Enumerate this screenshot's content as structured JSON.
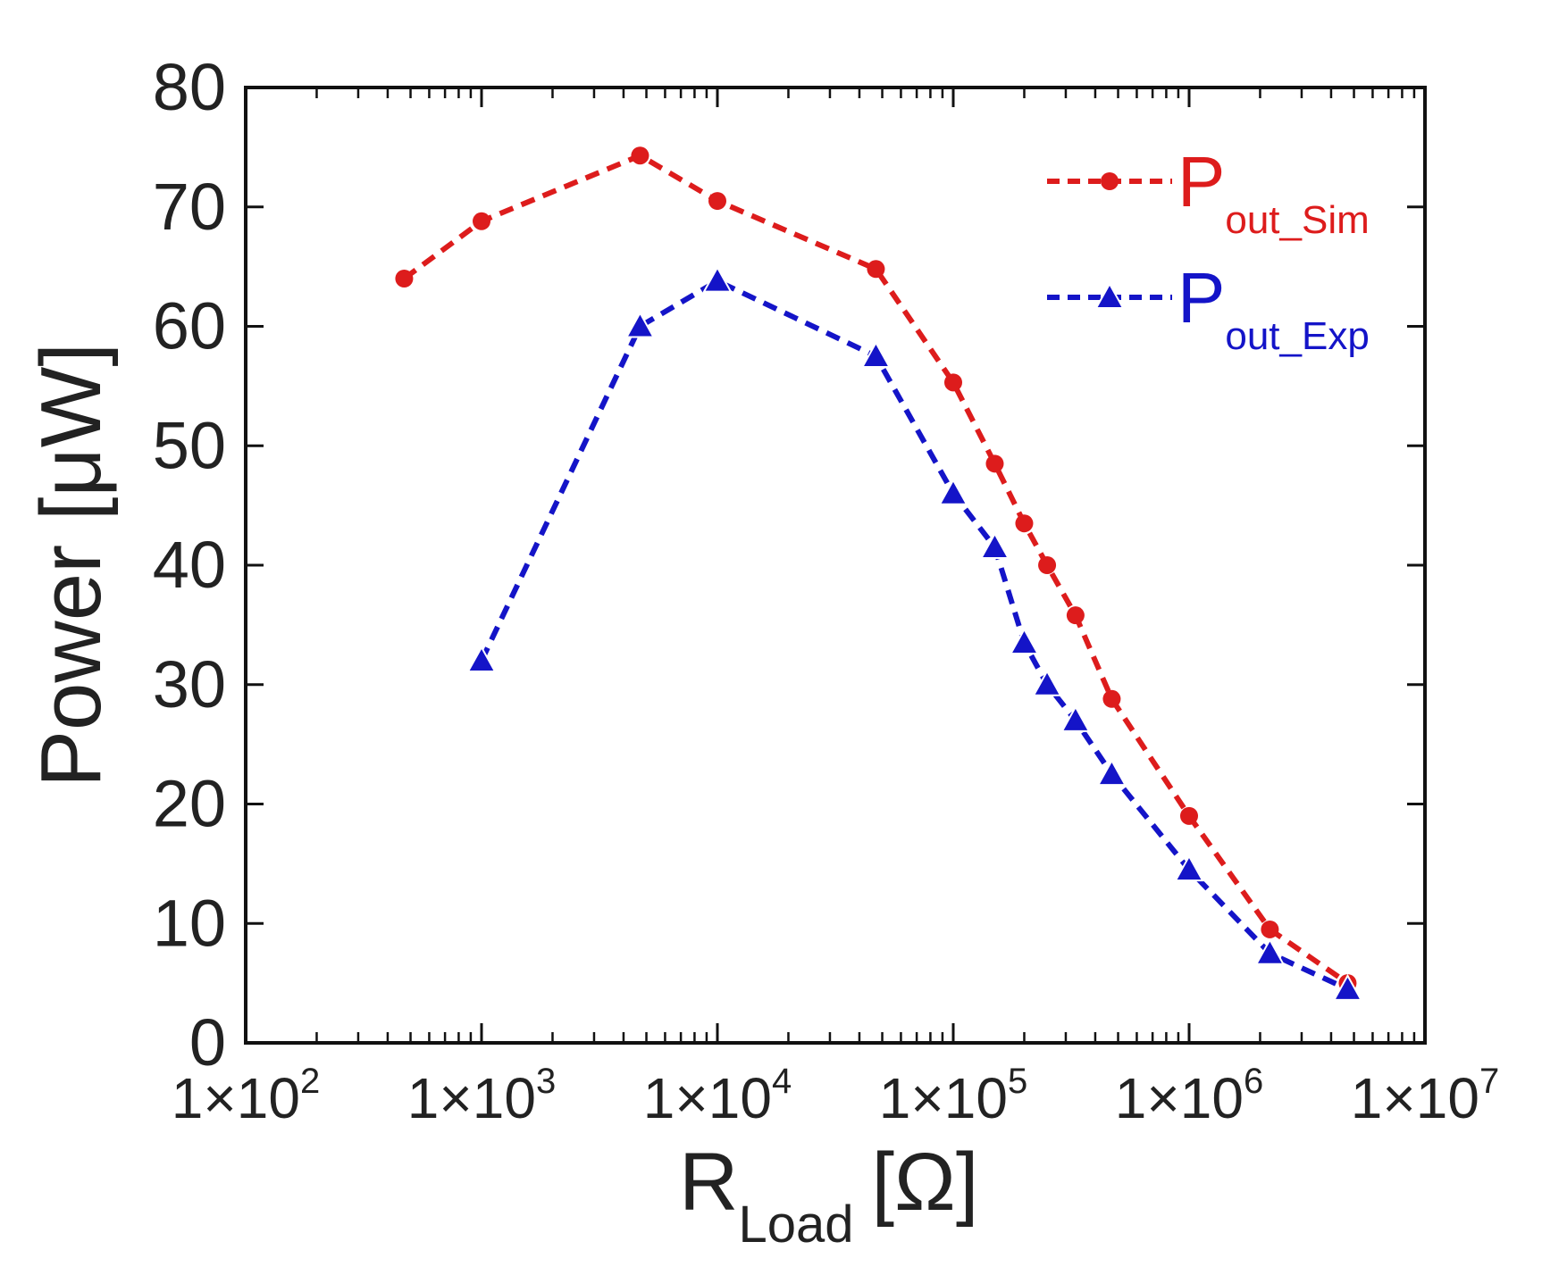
{
  "chart_data": {
    "type": "line",
    "title": "",
    "xlabel": "R",
    "xlabel_sub": "Load",
    "xlabel_unit": "[Ω]",
    "ylabel": "Power [μW]",
    "xscale": "log",
    "xlim": [
      100,
      10000000
    ],
    "ylim": [
      0,
      80
    ],
    "grid": false,
    "legend_position": "top-right",
    "x_ticks": [
      {
        "value": 100,
        "label": "1×10",
        "exp": "2"
      },
      {
        "value": 1000,
        "label": "1×10",
        "exp": "3"
      },
      {
        "value": 10000,
        "label": "1×10",
        "exp": "4"
      },
      {
        "value": 100000,
        "label": "1×10",
        "exp": "5"
      },
      {
        "value": 1000000,
        "label": "1×10",
        "exp": "6"
      },
      {
        "value": 10000000,
        "label": "1×10",
        "exp": "7"
      }
    ],
    "y_ticks": [
      0,
      10,
      20,
      30,
      40,
      50,
      60,
      70,
      80
    ],
    "series": [
      {
        "name": "P",
        "name_sub": "out_Sim",
        "color": "#dd1c1c",
        "marker": "circle",
        "points": [
          [
            470,
            64
          ],
          [
            1000,
            68.8
          ],
          [
            4700,
            74.3
          ],
          [
            10000,
            70.5
          ],
          [
            47000,
            64.8
          ],
          [
            100000,
            55.3
          ],
          [
            150000,
            48.5
          ],
          [
            200000,
            43.5
          ],
          [
            250000,
            40
          ],
          [
            330000,
            35.8
          ],
          [
            470000,
            28.8
          ],
          [
            1000000,
            19
          ],
          [
            2200000,
            9.5
          ],
          [
            4700000,
            5
          ]
        ]
      },
      {
        "name": "P",
        "name_sub": "out_Exp",
        "color": "#1414c8",
        "marker": "triangle",
        "points": [
          [
            1000,
            32
          ],
          [
            4700,
            60
          ],
          [
            10000,
            63.8
          ],
          [
            47000,
            57.5
          ],
          [
            100000,
            46
          ],
          [
            150000,
            41.5
          ],
          [
            200000,
            33.5
          ],
          [
            250000,
            30
          ],
          [
            330000,
            27
          ],
          [
            470000,
            22.5
          ],
          [
            1000000,
            14.5
          ],
          [
            2200000,
            7.5
          ],
          [
            4700000,
            4.5
          ]
        ]
      }
    ]
  }
}
